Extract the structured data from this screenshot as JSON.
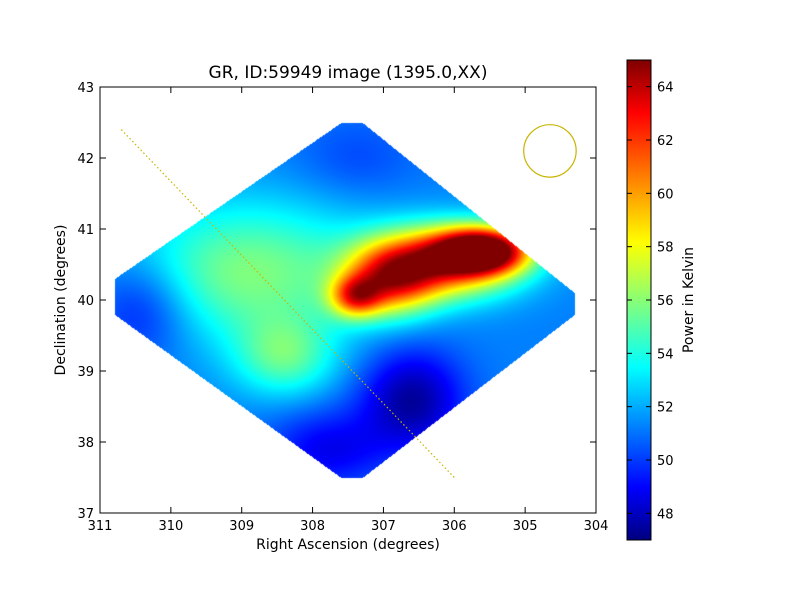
{
  "chart_data": {
    "type": "heatmap",
    "title": "GR, ID:59949 image (1395.0,XX)",
    "xlabel": "Right Ascension (degrees)",
    "ylabel": "Declination (degrees)",
    "xlim": [
      311,
      304
    ],
    "ylim": [
      37,
      43
    ],
    "x_ticks": [
      "311",
      "310",
      "309",
      "308",
      "307",
      "306",
      "305",
      "304"
    ],
    "y_ticks": [
      "37",
      "38",
      "39",
      "40",
      "41",
      "42",
      "43"
    ],
    "colorbar": {
      "label": "Power in Kelvin",
      "range": [
        47,
        65
      ],
      "ticks": [
        "48",
        "50",
        "52",
        "54",
        "56",
        "58",
        "60",
        "62",
        "64"
      ],
      "colormap": "jet"
    },
    "footprint": [
      [
        307.6,
        42.5
      ],
      [
        307.3,
        42.5
      ],
      [
        304.3,
        40.1
      ],
      [
        304.3,
        39.8
      ],
      [
        307.3,
        37.5
      ],
      [
        307.6,
        37.5
      ],
      [
        310.8,
        39.8
      ],
      [
        310.8,
        40.3
      ]
    ],
    "background_level": 51.5,
    "emission_features": [
      {
        "ra": 305.6,
        "dec": 40.7,
        "value": 64.5,
        "sigma_ra": 0.45,
        "sigma_dec": 0.22
      },
      {
        "ra": 306.1,
        "dec": 40.55,
        "value": 61.5,
        "sigma_ra": 0.7,
        "sigma_dec": 0.35
      },
      {
        "ra": 306.9,
        "dec": 40.3,
        "value": 60.0,
        "sigma_ra": 0.45,
        "sigma_dec": 0.35
      },
      {
        "ra": 307.4,
        "dec": 40.05,
        "value": 58.5,
        "sigma_ra": 0.25,
        "sigma_dec": 0.2
      },
      {
        "ra": 308.9,
        "dec": 40.4,
        "value": 56.0,
        "sigma_ra": 1.2,
        "sigma_dec": 0.7
      },
      {
        "ra": 308.4,
        "dec": 39.2,
        "value": 55.0,
        "sigma_ra": 0.5,
        "sigma_dec": 0.4
      },
      {
        "ra": 306.6,
        "dec": 38.6,
        "value": 47.5,
        "sigma_ra": 0.5,
        "sigma_dec": 0.5
      },
      {
        "ra": 307.4,
        "dec": 42.0,
        "value": 50.5,
        "sigma_ra": 0.6,
        "sigma_dec": 0.4
      },
      {
        "ra": 310.4,
        "dec": 39.9,
        "value": 49.0,
        "sigma_ra": 0.5,
        "sigma_dec": 0.5
      },
      {
        "ra": 307.8,
        "dec": 37.9,
        "value": 49.0,
        "sigma_ra": 0.6,
        "sigma_dec": 0.4
      }
    ],
    "galactic_plane": {
      "color": "#c8b400",
      "points": [
        [
          310.7,
          42.4
        ],
        [
          306.0,
          37.5
        ]
      ]
    },
    "beam": {
      "ra": 304.65,
      "dec": 42.1,
      "radius_deg": 0.37,
      "color": "#c8b400"
    }
  }
}
